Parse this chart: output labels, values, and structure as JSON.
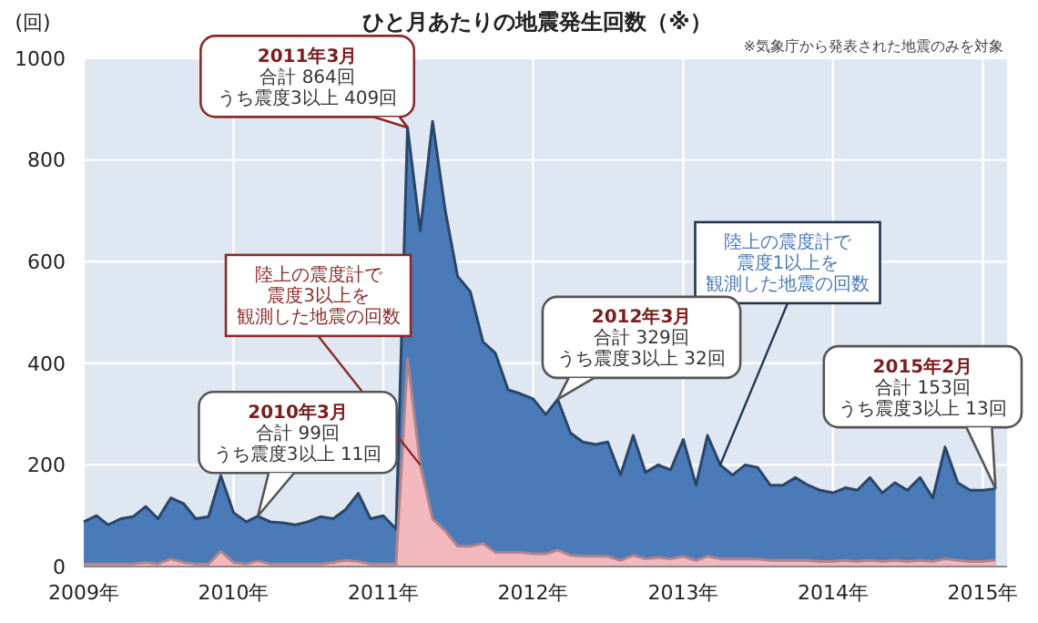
{
  "chart_data": {
    "type": "area",
    "title": "ひと月あたりの地震発生回数（※）",
    "ylabel": "(回)",
    "annotations": [
      "※気象庁から発表された地震のみを対象",
      {
        "text": "2010年3月合計 99回うち震度3以上 11回",
        "x": "2010-03",
        "y": 99
      },
      {
        "text": "2011年3月合計 864回うち震度3以上 409回",
        "x": "2011-03",
        "y": 864
      },
      {
        "text": "2012年3月合計 329回うち震度3以上 32回",
        "x": "2012-03",
        "y": 329
      },
      {
        "text": "2015年2月合計 153回うち震度3以上 13回",
        "x": "2015-02",
        "y": 153
      }
    ],
    "x": [
      "2009-01",
      "2009-02",
      "2009-03",
      "2009-04",
      "2009-05",
      "2009-06",
      "2009-07",
      "2009-08",
      "2009-09",
      "2009-10",
      "2009-11",
      "2009-12",
      "2010-01",
      "2010-02",
      "2010-03",
      "2010-04",
      "2010-05",
      "2010-06",
      "2010-07",
      "2010-08",
      "2010-09",
      "2010-10",
      "2010-11",
      "2010-12",
      "2011-01",
      "2011-02",
      "2011-03",
      "2011-04",
      "2011-05",
      "2011-06",
      "2011-07",
      "2011-08",
      "2011-09",
      "2011-10",
      "2011-11",
      "2011-12",
      "2012-01",
      "2012-02",
      "2012-03",
      "2012-04",
      "2012-05",
      "2012-06",
      "2012-07",
      "2012-08",
      "2012-09",
      "2012-10",
      "2012-11",
      "2012-12",
      "2013-01",
      "2013-02",
      "2013-03",
      "2013-04",
      "2013-05",
      "2013-06",
      "2013-07",
      "2013-08",
      "2013-09",
      "2013-10",
      "2013-11",
      "2013-12",
      "2014-01",
      "2014-02",
      "2014-03",
      "2014-04",
      "2014-05",
      "2014-06",
      "2014-07",
      "2014-08",
      "2014-09",
      "2014-10",
      "2014-11",
      "2014-12",
      "2015-01",
      "2015-02"
    ],
    "series": [
      {
        "name": "陸上の震度計で震度1以上を観測した地震の回数",
        "color": "#4a7ab8",
        "values": [
          88,
          100,
          82,
          94,
          98,
          118,
          94,
          135,
          124,
          94,
          98,
          179,
          106,
          88,
          99,
          88,
          86,
          82,
          88,
          98,
          94,
          112,
          144,
          94,
          100,
          74,
          864,
          660,
          876,
          700,
          571,
          541,
          442,
          420,
          348,
          340,
          330,
          299,
          329,
          263,
          245,
          240,
          245,
          180,
          258,
          185,
          200,
          190,
          250,
          160,
          258,
          200,
          180,
          200,
          195,
          160,
          160,
          175,
          160,
          150,
          145,
          155,
          150,
          175,
          145,
          165,
          150,
          175,
          135,
          235,
          165,
          150,
          150,
          153
        ]
      },
      {
        "name": "陸上の震度計で震度3以上を観測した地震の回数",
        "color": "#f2b8be",
        "values": [
          5,
          5,
          5,
          5,
          5,
          8,
          5,
          15,
          8,
          5,
          5,
          30,
          8,
          5,
          11,
          5,
          5,
          5,
          5,
          5,
          8,
          12,
          10,
          5,
          5,
          5,
          409,
          200,
          94,
          70,
          40,
          40,
          45,
          28,
          28,
          28,
          25,
          25,
          32,
          22,
          20,
          20,
          20,
          12,
          22,
          15,
          18,
          15,
          20,
          12,
          20,
          15,
          15,
          15,
          15,
          12,
          12,
          12,
          12,
          10,
          10,
          12,
          10,
          12,
          10,
          12,
          10,
          12,
          10,
          15,
          12,
          10,
          10,
          13
        ]
      }
    ],
    "xlim": [
      "2009-01",
      "2015-03"
    ],
    "xticks": [
      {
        "value": "2009",
        "label": "2009年"
      },
      {
        "value": "2010",
        "label": "2010年"
      },
      {
        "value": "2011",
        "label": "2011年"
      },
      {
        "value": "2012",
        "label": "2012年"
      },
      {
        "value": "2013",
        "label": "2013年"
      },
      {
        "value": "2014",
        "label": "2014年"
      },
      {
        "value": "2015",
        "label": "2015年"
      }
    ],
    "ylim": [
      0,
      1000
    ],
    "yticks": [
      0,
      200,
      400,
      600,
      800,
      1000
    ],
    "grid": true
  }
}
